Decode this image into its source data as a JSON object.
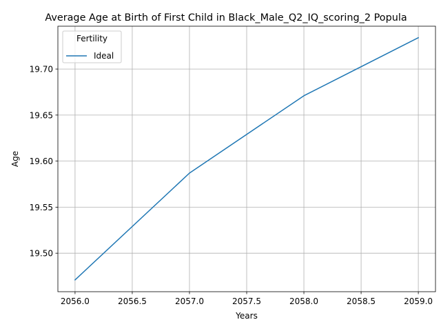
{
  "chart_data": {
    "type": "line",
    "title": "Average Age at Birth of First Child in Black_Male_Q2_IQ_scoring_2 Popula",
    "xlabel": "Years",
    "ylabel": "Age",
    "xlim": [
      2055.85,
      2059.15
    ],
    "ylim": [
      19.4582,
      19.7465
    ],
    "x_ticks": [
      2056.0,
      2056.5,
      2057.0,
      2057.5,
      2058.0,
      2058.5,
      2059.0
    ],
    "x_tick_labels": [
      "2056.0",
      "2056.5",
      "2057.0",
      "2057.5",
      "2058.0",
      "2058.5",
      "2059.0"
    ],
    "y_ticks": [
      19.5,
      19.55,
      19.6,
      19.65,
      19.7
    ],
    "y_tick_labels": [
      "19.50",
      "19.55",
      "19.60",
      "19.65",
      "19.70"
    ],
    "grid": true,
    "legend": {
      "title": "Fertility",
      "placement": "top-left"
    },
    "series": [
      {
        "name": "Ideal",
        "color": "#1f77b4",
        "x": [
          2056,
          2057,
          2058,
          2059
        ],
        "y": [
          19.471,
          19.587,
          19.671,
          19.734
        ]
      }
    ]
  }
}
